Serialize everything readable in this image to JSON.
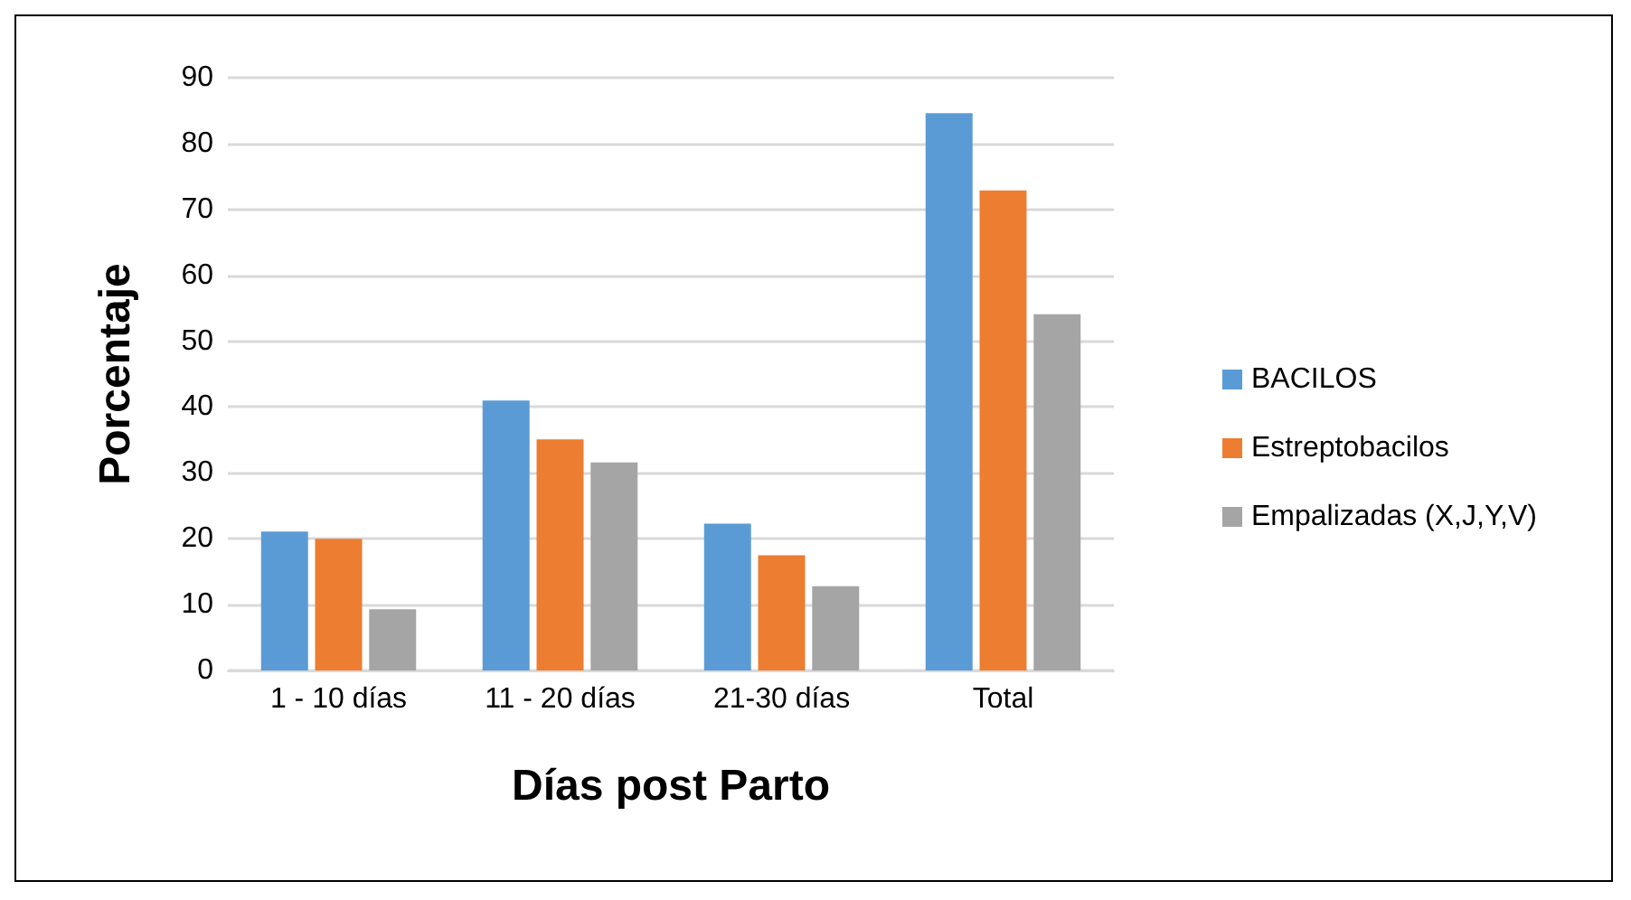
{
  "chart_data": {
    "type": "bar",
    "xlabel": "Días post Parto",
    "ylabel": "Porcentaje",
    "categories": [
      "1 - 10 días",
      "11 - 20 días",
      "21-30 días",
      "Total"
    ],
    "series": [
      {
        "name": "BACILOS",
        "color": "#5b9bd5",
        "values": [
          21.1,
          41.0,
          22.3,
          84.6
        ]
      },
      {
        "name": "Estreptobacilos",
        "color": "#ed7d31",
        "values": [
          20,
          35.1,
          17.5,
          72.9
        ]
      },
      {
        "name": "Empalizadas (X,J,Y,V)",
        "color": "#a5a5a5",
        "values": [
          9.3,
          31.6,
          12.8,
          54.1
        ]
      }
    ],
    "ylim": [
      0,
      90
    ],
    "yticks": [
      0,
      10,
      20,
      30,
      40,
      50,
      60,
      70,
      80,
      90
    ],
    "grid": "y",
    "legend": "right"
  }
}
